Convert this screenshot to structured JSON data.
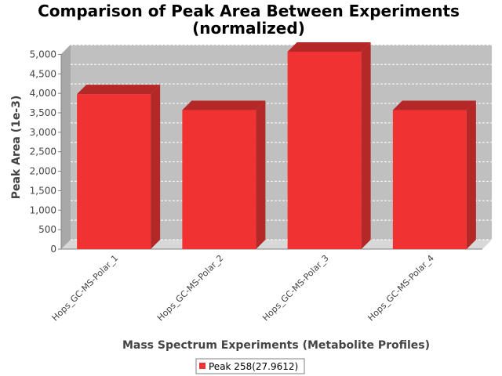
{
  "chart_data": {
    "type": "bar",
    "title_line1": "Comparison of Peak Area Between Experiments",
    "title_line2": "(normalized)",
    "xlabel": "Mass Spectrum Experiments (Metabolite Profiles)",
    "ylabel": "Peak Area (1e-3)",
    "categories": [
      "Hops_GC-MS-Polar_1",
      "Hops_GC-MS-Polar_2",
      "Hops_GC-MS-Polar_3",
      "Hops_GC-MS-Polar_4"
    ],
    "series": [
      {
        "name": "Peak 258(27.9612)",
        "values": [
          3980,
          3570,
          5070,
          3570
        ]
      }
    ],
    "ylim": [
      0,
      5250
    ],
    "yticks": [
      0,
      500,
      1000,
      1500,
      2000,
      2500,
      3000,
      3500,
      4000,
      4500,
      5000
    ],
    "ytick_labels": [
      "0",
      "500",
      "1,000",
      "1,500",
      "2,000",
      "2,500",
      "3,000",
      "3,500",
      "4,000",
      "4,500",
      "5,000"
    ],
    "grid": true,
    "legend_position": "bottom",
    "colors": {
      "bar_front": "#f03232",
      "bar_top": "#b42828",
      "bar_side": "#b42828",
      "plot_back": "#c0c0c0",
      "plot_floor": "#d8d8d8",
      "grid": "#ffffff"
    }
  }
}
